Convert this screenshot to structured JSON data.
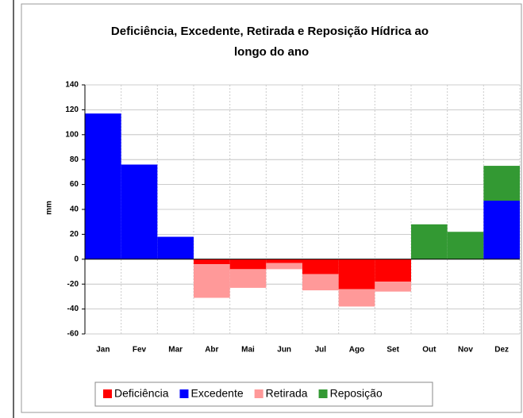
{
  "chart_data": {
    "type": "bar",
    "stacked": true,
    "title": "Deficiência, Excedente, Retirada e Reposição Hídrica ao longo do ano",
    "y_label": "mm",
    "categories": [
      "Jan",
      "Fev",
      "Mar",
      "Abr",
      "Mai",
      "Jun",
      "Jul",
      "Ago",
      "Set",
      "Out",
      "Nov",
      "Dez"
    ],
    "series": [
      {
        "name": "Deficiência",
        "color": "#ff0000",
        "values": [
          0,
          0,
          0,
          -4,
          -8,
          -3,
          -12,
          -24,
          -18,
          0,
          0,
          0
        ]
      },
      {
        "name": "Excedente",
        "color": "#0000ff",
        "values": [
          117,
          76,
          18,
          0,
          0,
          0,
          0,
          0,
          0,
          0,
          0,
          47
        ]
      },
      {
        "name": "Retirada",
        "color": "#ff9999",
        "values": [
          0,
          0,
          0,
          -27,
          -15,
          -5,
          -13,
          -14,
          -8,
          0,
          0,
          0
        ]
      },
      {
        "name": "Reposição",
        "color": "#339933",
        "values": [
          0,
          0,
          0,
          0,
          0,
          0,
          0,
          0,
          0,
          28,
          22,
          28
        ]
      }
    ],
    "ylim": [
      -60,
      140
    ],
    "yticks": [
      140,
      120,
      100,
      80,
      60,
      40,
      20,
      0,
      -20,
      -40,
      -60
    ],
    "grid": true,
    "legend": "bottom"
  }
}
